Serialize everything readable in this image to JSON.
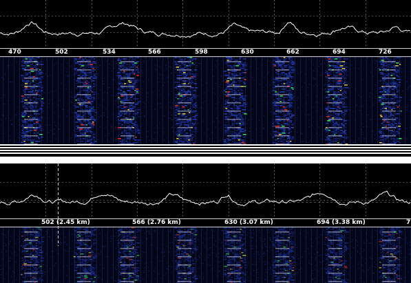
{
  "top_axis": {
    "ticks": [
      "470",
      "502",
      "534",
      "566",
      "598",
      "630",
      "662",
      "694",
      "726"
    ]
  },
  "bottom_axis": {
    "ticks": [
      "502 (2.45 km)",
      "566 (2.76 km)",
      "630 (3.07 km)",
      "694 (3.38 km)",
      "7"
    ]
  },
  "colors": {
    "background": "#000000",
    "trace": "#ffffff",
    "grid_dashed": "#9a9a9a",
    "waterfall_base": "#0a1a5a",
    "accent_red": "#ff3030",
    "accent_green": "#30ff60",
    "accent_yellow": "#ffe040"
  }
}
